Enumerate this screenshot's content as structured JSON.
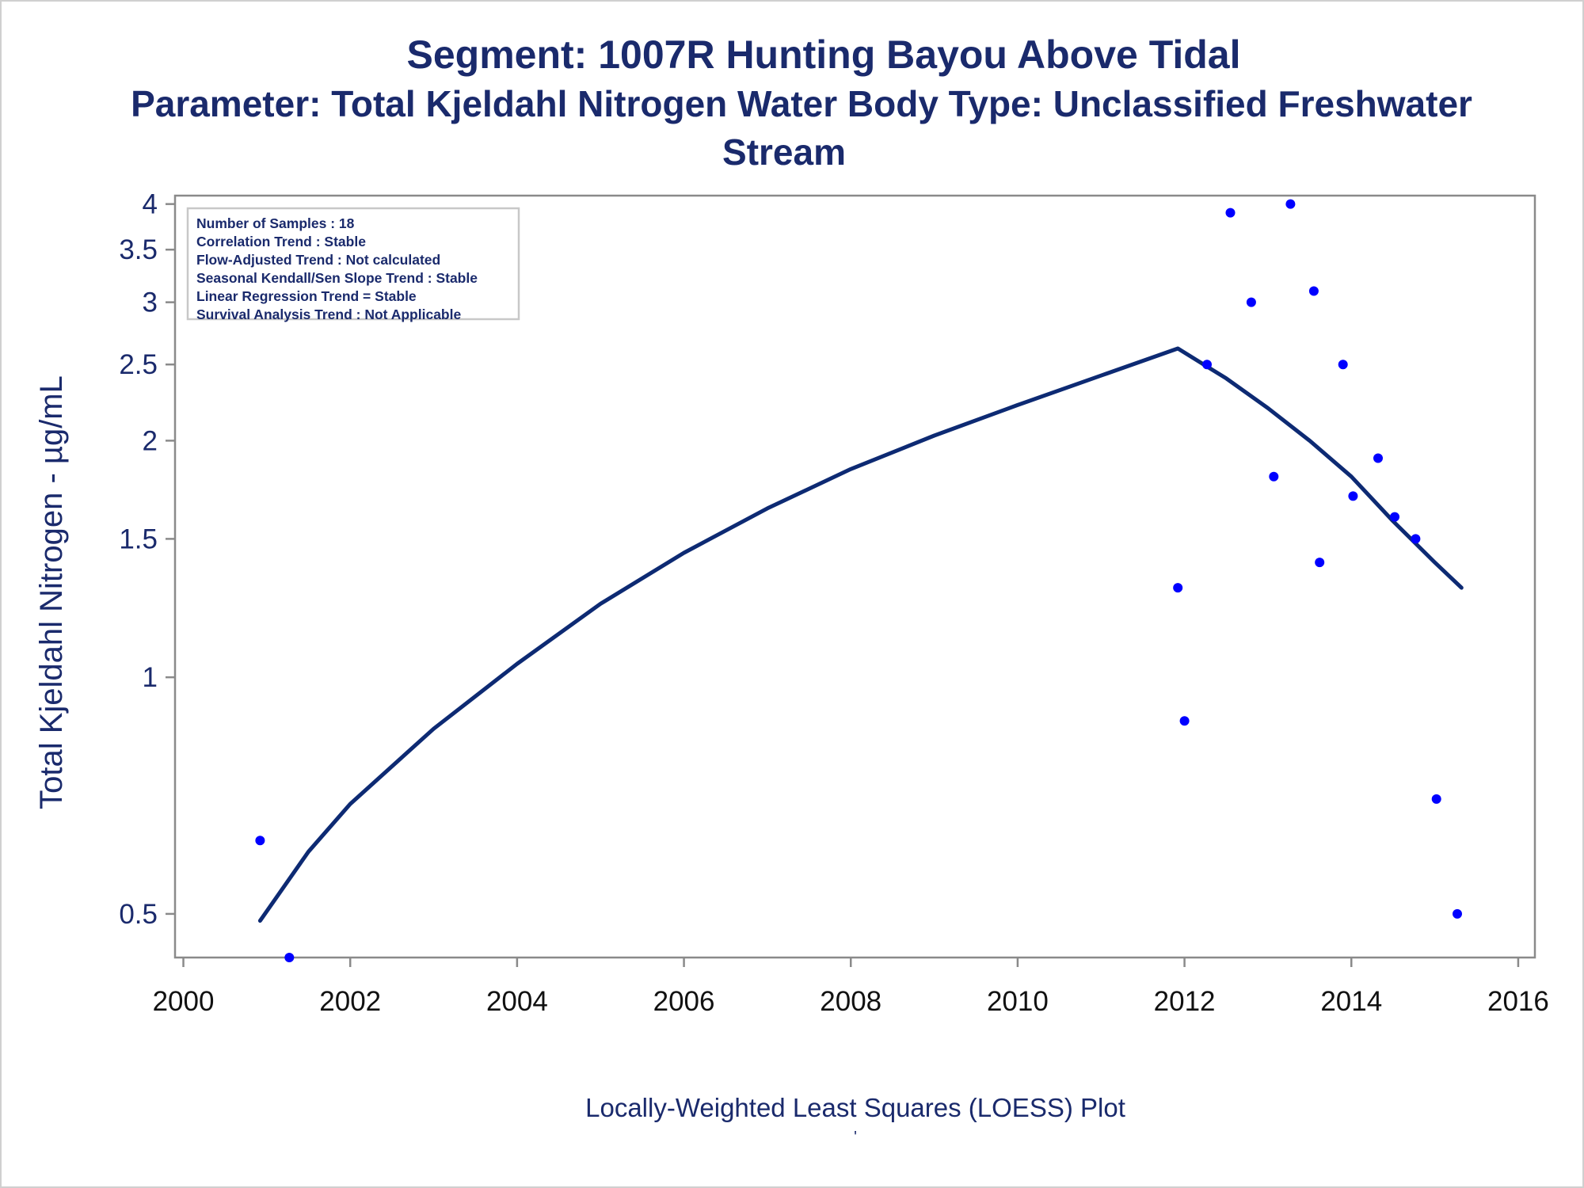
{
  "title": {
    "line1": "Segment: 1007R  Hunting Bayou Above Tidal",
    "line2": "Parameter: Total Kjeldahl Nitrogen   Water Body Type: Unclassified Freshwater",
    "line3": "Stream"
  },
  "footnote": "Locally-Weighted Least Squares (LOESS) Plot",
  "footnote_mark": "'",
  "colors": {
    "text": "#1a2a6c",
    "curve": "#0d2a73",
    "points": "#0000ff",
    "axis": "#8a8a8a",
    "legend_border": "#c8c8c8"
  },
  "chart_data": {
    "type": "scatter",
    "ylabel": "Total Kjeldahl Nitrogen -  µg/mL",
    "xlabel": "",
    "y_scale": "log",
    "xlim": [
      1999.9,
      2016.2
    ],
    "ylim": [
      0.44,
      4.1
    ],
    "x_ticks": [
      "2000",
      "2002",
      "2004",
      "2006",
      "2008",
      "2010",
      "2012",
      "2014",
      "2016"
    ],
    "y_ticks": [
      "0.5",
      "1",
      "1.5",
      "2",
      "2.5",
      "3",
      "3.5",
      "4"
    ],
    "grid": false,
    "legend_placement": "top-left",
    "stats_box": [
      "Number of Samples : 18",
      "Correlation Trend : Stable",
      "Flow-Adjusted Trend : Not calculated",
      "Seasonal Kendall/Sen Slope Trend : Stable",
      "Linear Regression Trend = Stable",
      "Survival Analysis Trend : Not Applicable"
    ],
    "series": [
      {
        "kind": "points",
        "x": [
          2000.92,
          2001.27,
          2011.92,
          2012.0,
          2012.27,
          2012.55,
          2012.8,
          2013.07,
          2013.27,
          2013.55,
          2013.62,
          2013.9,
          2014.02,
          2014.32,
          2014.52,
          2014.77,
          2015.02,
          2015.27
        ],
        "y": [
          0.62,
          0.44,
          1.3,
          0.88,
          2.5,
          3.9,
          3.0,
          1.8,
          4.0,
          3.1,
          1.4,
          2.5,
          1.7,
          1.9,
          1.6,
          1.5,
          0.7,
          0.5
        ]
      },
      {
        "kind": "loess_curve",
        "x": [
          2000.92,
          2001.5,
          2002.0,
          2003.0,
          2004.0,
          2005.0,
          2006.0,
          2007.0,
          2008.0,
          2009.0,
          2010.0,
          2011.0,
          2011.92,
          2012.5,
          2013.0,
          2013.5,
          2014.0,
          2014.5,
          2015.0,
          2015.32
        ],
        "y": [
          0.49,
          0.6,
          0.69,
          0.86,
          1.04,
          1.24,
          1.44,
          1.64,
          1.84,
          2.03,
          2.22,
          2.42,
          2.62,
          2.4,
          2.2,
          2.0,
          1.8,
          1.58,
          1.4,
          1.3
        ]
      }
    ]
  }
}
